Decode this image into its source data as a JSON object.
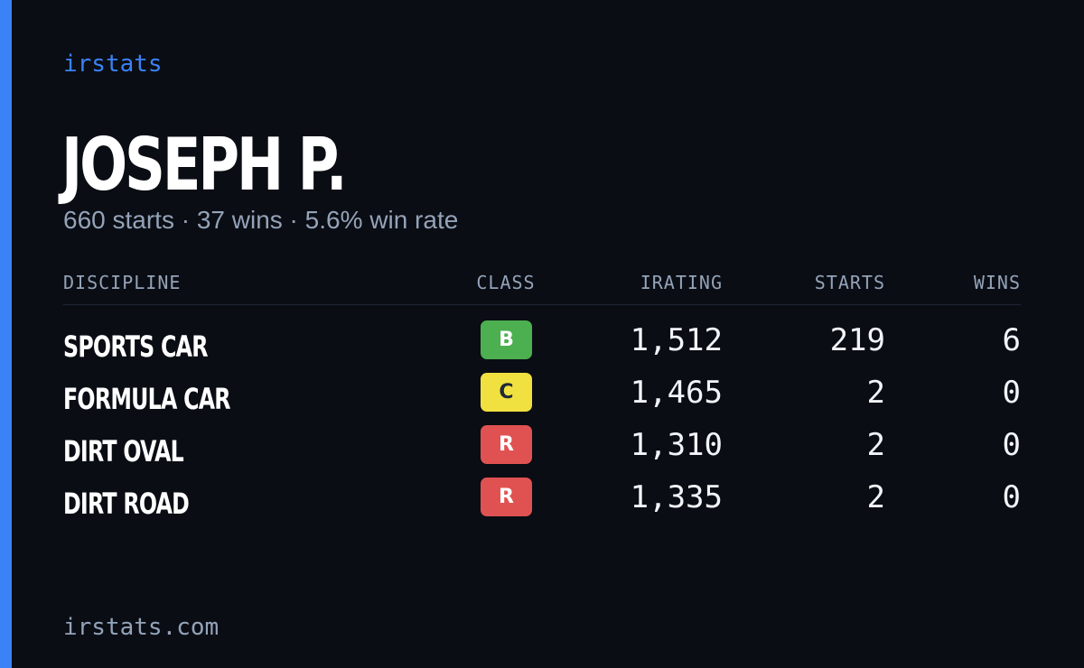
{
  "brand": "irstats",
  "driver": {
    "name": "JOSEPH P.",
    "summary": "660 starts · 37 wins · 5.6% win rate"
  },
  "table": {
    "headers": {
      "discipline": "DISCIPLINE",
      "class": "CLASS",
      "irating": "IRATING",
      "starts": "STARTS",
      "wins": "WINS"
    },
    "rows": [
      {
        "discipline": "SPORTS CAR",
        "class": "B",
        "class_bg": "#4caf50",
        "class_fg": "#ffffff",
        "irating": "1,512",
        "starts": "219",
        "wins": "6"
      },
      {
        "discipline": "FORMULA CAR",
        "class": "C",
        "class_bg": "#f0e040",
        "class_fg": "#1f2937",
        "irating": "1,465",
        "starts": "2",
        "wins": "0"
      },
      {
        "discipline": "DIRT OVAL",
        "class": "R",
        "class_bg": "#e05252",
        "class_fg": "#ffffff",
        "irating": "1,310",
        "starts": "2",
        "wins": "0"
      },
      {
        "discipline": "DIRT ROAD",
        "class": "R",
        "class_bg": "#e05252",
        "class_fg": "#ffffff",
        "irating": "1,335",
        "starts": "2",
        "wins": "0"
      }
    ]
  },
  "footer": "irstats.com",
  "colors": {
    "accent": "#3b82f6",
    "background": "#0a0d14",
    "muted": "#94a3b8"
  }
}
